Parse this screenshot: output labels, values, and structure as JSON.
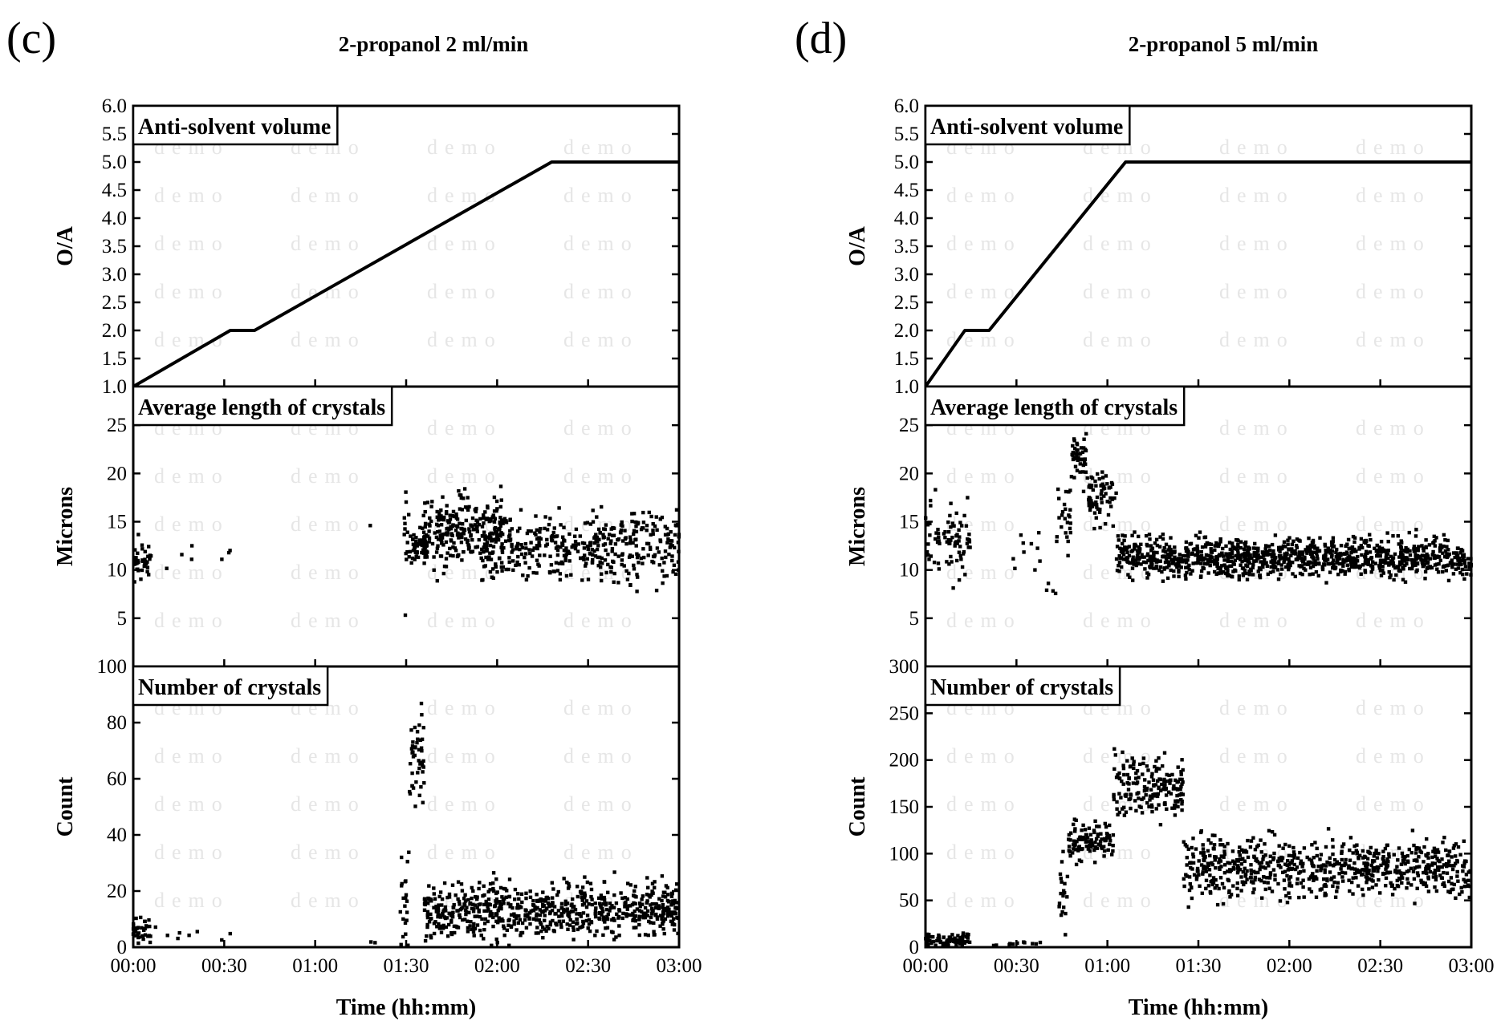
{
  "chart_data": [
    {
      "type": "scatter",
      "panel_label": "(c)",
      "title": "2-propanol 2 ml/min",
      "xlabel": "Time (hh:mm)",
      "x_ticks": [
        "00:00",
        "00:30",
        "01:00",
        "01:30",
        "02:00",
        "02:30",
        "03:00"
      ],
      "xlim_minutes": [
        0,
        180
      ],
      "watermark": "demo",
      "subplots": [
        {
          "name": "Anti-solvent volume",
          "type": "line",
          "ylabel": "O/A",
          "ylim": [
            1.0,
            6.0
          ],
          "y_ticks": [
            "1.0",
            "1.5",
            "2.0",
            "2.5",
            "3.0",
            "3.5",
            "4.0",
            "4.5",
            "5.0",
            "5.5",
            "6.0"
          ],
          "series": [
            {
              "name": "O/A",
              "x_minutes": [
                0,
                32,
                40,
                138,
                180
              ],
              "y": [
                1.0,
                2.0,
                2.0,
                5.0,
                5.0
              ]
            }
          ]
        },
        {
          "name": "Average length of crystals",
          "type": "scatter",
          "ylabel": "Microns",
          "ylim": [
            0,
            29
          ],
          "y_ticks": [
            "5",
            "10",
            "15",
            "20",
            "25"
          ],
          "segments": [
            {
              "x_start": 0,
              "x_end": 6,
              "n": 40,
              "mean": 11.2,
              "spread": 1.6
            },
            {
              "x_start": 6,
              "x_end": 32,
              "n": 7,
              "mean": 11.2,
              "spread": 1.2
            },
            {
              "x_start": 78,
              "x_end": 78.5,
              "n": 1,
              "mean": 14.6,
              "spread": 0.3
            },
            {
              "x_start": 88,
              "x_end": 91,
              "n": 14,
              "mean": 12.5,
              "spread": 4.5
            },
            {
              "x_start": 91,
              "x_end": 97,
              "n": 60,
              "mean": 12.3,
              "spread": 1.0
            },
            {
              "x_start": 95,
              "x_end": 122,
              "n": 260,
              "mean": 14.0,
              "spread": 2.8
            },
            {
              "x_start": 115,
              "x_end": 180,
              "n": 420,
              "mean": 12.3,
              "spread": 2.4
            }
          ]
        },
        {
          "name": "Number of crystals",
          "type": "scatter",
          "ylabel": "Count",
          "ylim": [
            0,
            100
          ],
          "y_ticks": [
            "0",
            "20",
            "40",
            "60",
            "80",
            "100"
          ],
          "segments": [
            {
              "x_start": 0,
              "x_end": 6,
              "n": 35,
              "mean": 6,
              "spread": 3
            },
            {
              "x_start": 6,
              "x_end": 32,
              "n": 8,
              "mean": 5,
              "spread": 2
            },
            {
              "x_start": 78,
              "x_end": 80,
              "n": 2,
              "mean": 1.5,
              "spread": 1
            },
            {
              "x_start": 88,
              "x_end": 91,
              "n": 25,
              "mean": 15,
              "spread": 14
            },
            {
              "x_start": 91,
              "x_end": 96,
              "n": 45,
              "mean": 68,
              "spread": 12
            },
            {
              "x_start": 96,
              "x_end": 180,
              "n": 700,
              "mean": 13,
              "spread": 7
            }
          ]
        }
      ]
    },
    {
      "type": "scatter",
      "panel_label": "(d)",
      "title": "2-propanol 5 ml/min",
      "xlabel": "Time (hh:mm)",
      "x_ticks": [
        "00:00",
        "00:30",
        "01:00",
        "01:30",
        "02:00",
        "02:30",
        "03:00"
      ],
      "xlim_minutes": [
        0,
        180
      ],
      "watermark": "demo",
      "subplots": [
        {
          "name": "Anti-solvent volume",
          "type": "line",
          "ylabel": "O/A",
          "ylim": [
            1.0,
            6.0
          ],
          "y_ticks": [
            "1.0",
            "1.5",
            "2.0",
            "2.5",
            "3.0",
            "3.5",
            "4.0",
            "4.5",
            "5.0",
            "5.5",
            "6.0"
          ],
          "series": [
            {
              "name": "O/A",
              "x_minutes": [
                0,
                13,
                21,
                66,
                180
              ],
              "y": [
                1.0,
                2.0,
                2.0,
                5.0,
                5.0
              ]
            }
          ]
        },
        {
          "name": "Average length of crystals",
          "type": "scatter",
          "ylabel": "Microns",
          "ylim": [
            0,
            29
          ],
          "y_ticks": [
            "5",
            "10",
            "15",
            "20",
            "25"
          ],
          "segments": [
            {
              "x_start": 0,
              "x_end": 15,
              "n": 80,
              "mean": 12.8,
              "spread": 2.8
            },
            {
              "x_start": 28,
              "x_end": 38,
              "n": 10,
              "mean": 12.0,
              "spread": 1.8
            },
            {
              "x_start": 38,
              "x_end": 43,
              "n": 4,
              "mean": 7.6,
              "spread": 0.7
            },
            {
              "x_start": 43,
              "x_end": 48,
              "n": 25,
              "mean": 15,
              "spread": 3
            },
            {
              "x_start": 48,
              "x_end": 53,
              "n": 45,
              "mean": 21.5,
              "spread": 1.8
            },
            {
              "x_start": 53,
              "x_end": 63,
              "n": 70,
              "mean": 17.5,
              "spread": 1.8
            },
            {
              "x_start": 63,
              "x_end": 180,
              "n": 1100,
              "mean": 11.3,
              "spread": 1.4
            }
          ]
        },
        {
          "name": "Number of crystals",
          "type": "scatter",
          "ylabel": "Count",
          "ylim": [
            0,
            300
          ],
          "y_ticks": [
            "0",
            "50",
            "100",
            "150",
            "200",
            "250",
            "300"
          ],
          "segments": [
            {
              "x_start": 0,
              "x_end": 15,
              "n": 90,
              "mean": 7,
              "spread": 5
            },
            {
              "x_start": 22,
              "x_end": 44,
              "n": 14,
              "mean": 4,
              "spread": 2
            },
            {
              "x_start": 44,
              "x_end": 47,
              "n": 20,
              "mean": 55,
              "spread": 30
            },
            {
              "x_start": 47,
              "x_end": 62,
              "n": 100,
              "mean": 115,
              "spread": 14
            },
            {
              "x_start": 62,
              "x_end": 85,
              "n": 180,
              "mean": 170,
              "spread": 22
            },
            {
              "x_start": 85,
              "x_end": 180,
              "n": 700,
              "mean": 85,
              "spread": 22
            }
          ]
        }
      ]
    }
  ]
}
